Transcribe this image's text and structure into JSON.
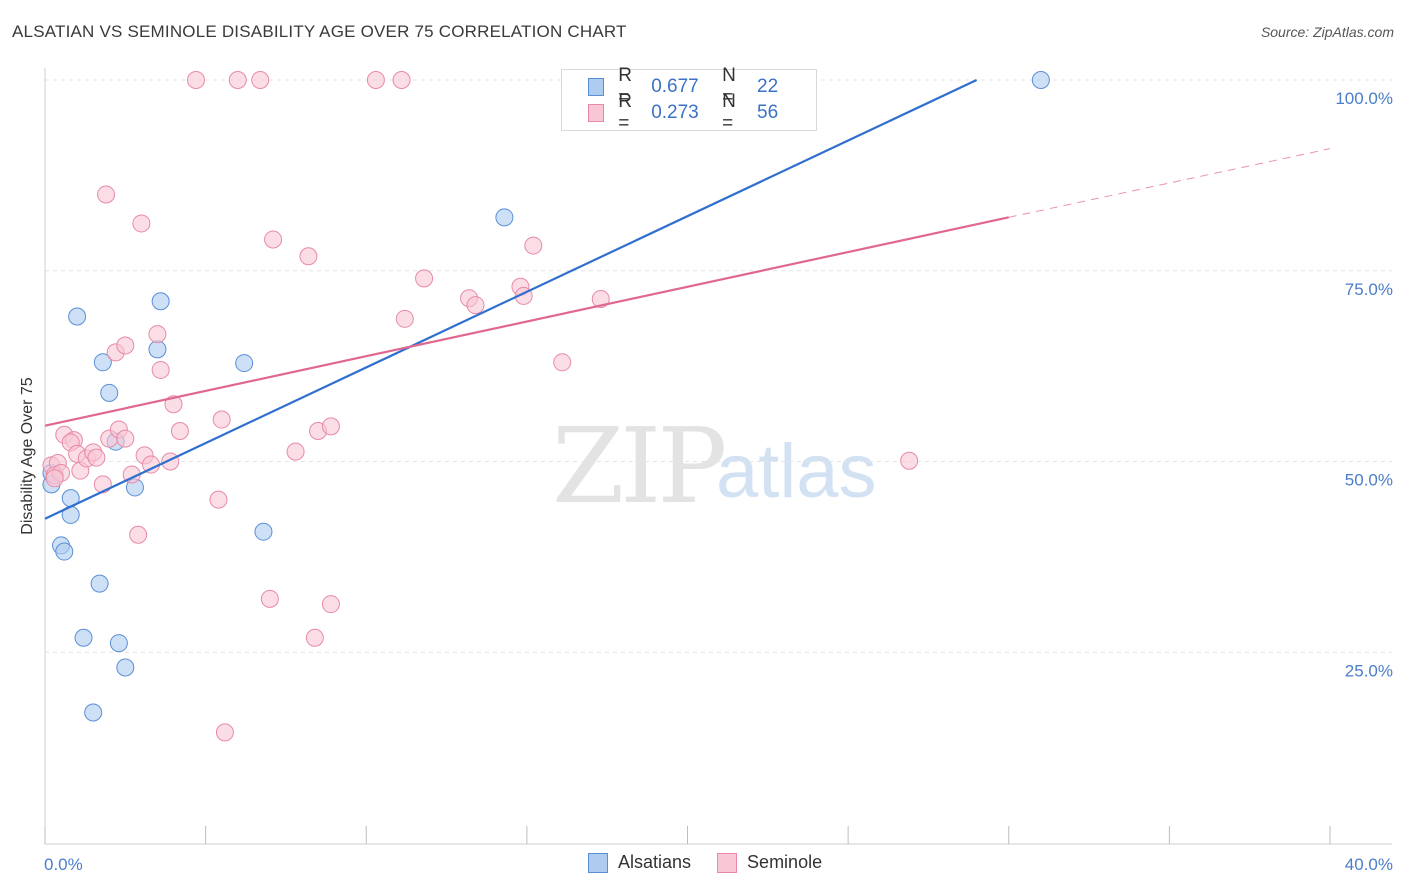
{
  "header": {
    "title": "ALSATIAN VS SEMINOLE DISABILITY AGE OVER 75 CORRELATION CHART",
    "source": "Source: ZipAtlas.com"
  },
  "watermark": {
    "zip": "ZIP",
    "atlas": "atlas"
  },
  "legend": {
    "rows": [
      {
        "r_label": "R =",
        "r_value": "0.677",
        "n_label": "N =",
        "n_value": "22",
        "color": "#aecbf0",
        "border": "#5a8fd6"
      },
      {
        "r_label": "R =",
        "r_value": "0.273",
        "n_label": "N =",
        "n_value": "56",
        "color": "#f8c6d5",
        "border": "#e88aa8"
      }
    ]
  },
  "bottom_legend": {
    "items": [
      {
        "label": "Alsatians",
        "color": "#aecbf0",
        "border": "#5a8fd6"
      },
      {
        "label": "Seminole",
        "color": "#f8c6d5",
        "border": "#e88aa8"
      }
    ]
  },
  "chart_data": {
    "type": "scatter",
    "title": "ALSATIAN VS SEMINOLE DISABILITY AGE OVER 75 CORRELATION CHART",
    "xlabel": "",
    "ylabel": "Disability Age Over 75",
    "xlim": [
      0,
      40
    ],
    "ylim": [
      0,
      100
    ],
    "x_tick_labels": [
      {
        "value": 0,
        "label": "0.0%"
      },
      {
        "value": 40,
        "label": "40.0%"
      }
    ],
    "y_tick_labels": [
      {
        "value": 25,
        "label": "25.0%"
      },
      {
        "value": 50,
        "label": "50.0%"
      },
      {
        "value": 75,
        "label": "75.0%"
      },
      {
        "value": 100,
        "label": "100.0%"
      }
    ],
    "grid": true,
    "legend_position": "top-center",
    "series": [
      {
        "name": "Alsatians",
        "color": "#aecbf0",
        "stroke": "#5a8fd6",
        "line_color": "#2f6fce",
        "trend": {
          "x": [
            0,
            29
          ],
          "y": [
            42.5,
            100
          ]
        },
        "points": [
          [
            0.2,
            48.5
          ],
          [
            0.2,
            47.0
          ],
          [
            0.8,
            45.2
          ],
          [
            0.8,
            43.0
          ],
          [
            0.5,
            39.0
          ],
          [
            0.6,
            38.2
          ],
          [
            1.0,
            69.0
          ],
          [
            1.8,
            63.0
          ],
          [
            2.0,
            59.0
          ],
          [
            2.2,
            52.6
          ],
          [
            1.7,
            34.0
          ],
          [
            1.2,
            26.9
          ],
          [
            2.3,
            26.2
          ],
          [
            2.5,
            23.0
          ],
          [
            1.5,
            17.1
          ],
          [
            3.5,
            64.7
          ],
          [
            3.6,
            71.0
          ],
          [
            2.8,
            46.6
          ],
          [
            6.2,
            62.9
          ],
          [
            6.8,
            40.8
          ],
          [
            14.3,
            82.0
          ],
          [
            31.0,
            100.0
          ]
        ]
      },
      {
        "name": "Seminole",
        "color": "#f8c6d5",
        "stroke": "#e88aa8",
        "line_color": "#e0678f",
        "trend": {
          "x": [
            0,
            30
          ],
          "y": [
            54.7,
            82.0
          ]
        },
        "trend_extension": {
          "x": [
            30,
            40
          ],
          "y": [
            82.0,
            91.0
          ]
        },
        "points": [
          [
            0.2,
            49.5
          ],
          [
            0.4,
            49.8
          ],
          [
            0.3,
            48.2
          ],
          [
            0.5,
            48.5
          ],
          [
            0.6,
            53.5
          ],
          [
            0.9,
            52.8
          ],
          [
            0.8,
            52.5
          ],
          [
            1.0,
            51.0
          ],
          [
            1.1,
            48.8
          ],
          [
            1.3,
            50.4
          ],
          [
            1.5,
            51.2
          ],
          [
            1.6,
            50.5
          ],
          [
            1.8,
            47.0
          ],
          [
            2.0,
            53.0
          ],
          [
            2.2,
            64.3
          ],
          [
            2.3,
            54.2
          ],
          [
            2.5,
            65.2
          ],
          [
            2.5,
            53.0
          ],
          [
            2.7,
            48.3
          ],
          [
            3.1,
            50.8
          ],
          [
            3.3,
            49.6
          ],
          [
            3.5,
            66.7
          ],
          [
            3.6,
            62.0
          ],
          [
            4.0,
            57.5
          ],
          [
            4.2,
            54.0
          ],
          [
            3.9,
            50.0
          ],
          [
            2.9,
            40.4
          ],
          [
            1.9,
            85.0
          ],
          [
            3.0,
            81.2
          ],
          [
            4.7,
            100.0
          ],
          [
            6.0,
            100.0
          ],
          [
            6.7,
            100.0
          ],
          [
            5.5,
            55.5
          ],
          [
            5.4,
            45.0
          ],
          [
            5.6,
            14.5
          ],
          [
            7.1,
            79.1
          ],
          [
            8.2,
            76.9
          ],
          [
            7.8,
            51.3
          ],
          [
            8.5,
            54.0
          ],
          [
            8.9,
            54.6
          ],
          [
            8.9,
            31.3
          ],
          [
            8.4,
            26.9
          ],
          [
            7.0,
            32.0
          ],
          [
            10.3,
            100.0
          ],
          [
            11.1,
            100.0
          ],
          [
            11.2,
            68.7
          ],
          [
            11.8,
            74.0
          ],
          [
            13.2,
            71.4
          ],
          [
            13.4,
            70.5
          ],
          [
            14.8,
            72.9
          ],
          [
            14.9,
            71.7
          ],
          [
            15.2,
            78.3
          ],
          [
            16.1,
            63.0
          ],
          [
            17.3,
            71.3
          ],
          [
            26.9,
            50.1
          ],
          [
            0.3,
            47.8
          ]
        ]
      }
    ]
  }
}
